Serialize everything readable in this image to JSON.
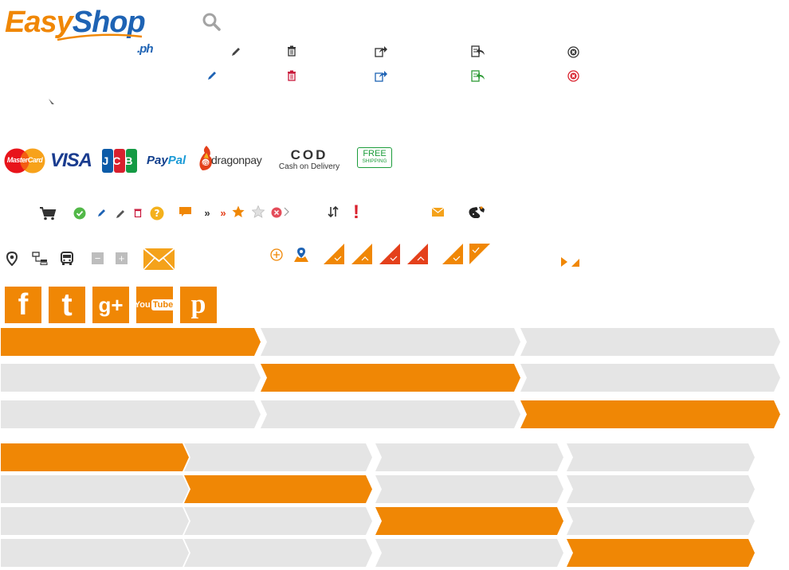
{
  "brand": {
    "name_part1": "Easy",
    "name_part2": "Shop",
    "suffix": ".ph"
  },
  "colors": {
    "accent": "#f08705",
    "blue": "#1e63b4",
    "step_inactive": "#e5e5e5",
    "red": "#d9202c",
    "green": "#2e9a36"
  },
  "icons": {
    "search": "search-icon",
    "row_gray": [
      "pencil-icon",
      "trash-icon",
      "share-icon",
      "return-icon",
      "close-circle-icon"
    ],
    "row_color": [
      "pencil-icon",
      "trash-icon",
      "share-icon",
      "return-icon",
      "close-circle-icon"
    ]
  },
  "payments": {
    "mastercard": "MasterCard",
    "visa": "VISA",
    "jcb": "JCB",
    "paypal_a": "Pay",
    "paypal_b": "Pal",
    "dragonpay": "dragonpay",
    "cod_title": "COD",
    "cod_sub": "Cash on Delivery",
    "free_title": "FREE",
    "free_sub": "SHIPPING"
  },
  "misc_icons": {
    "chevron_double_1": "»",
    "chevron_double_2": "»",
    "exclamation": "!",
    "minus": "−",
    "plus": "+"
  },
  "social": {
    "facebook": "f",
    "twitter": "t",
    "googleplus": "g+",
    "youtube_a": "You",
    "youtube_b": "Tube",
    "pinterest": "p"
  },
  "steps3": [
    {
      "active_index": 0
    },
    {
      "active_index": 1
    },
    {
      "active_index": 2
    }
  ],
  "steps4": [
    {
      "active_index": 0
    },
    {
      "active_index": 1
    },
    {
      "active_index": 2
    },
    {
      "active_index": 3
    }
  ]
}
